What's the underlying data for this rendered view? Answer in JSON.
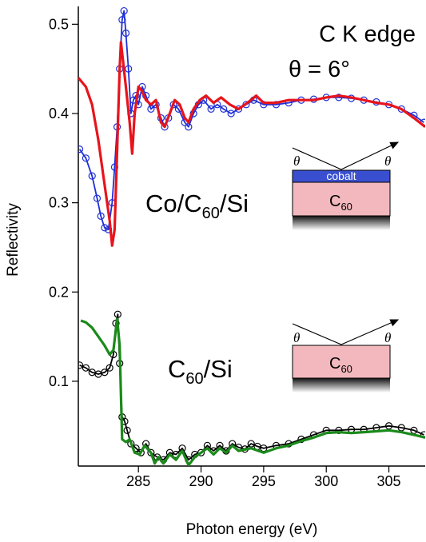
{
  "chart_data": {
    "type": "line",
    "xlabel": "Photon energy (eV)",
    "ylabel": "Reflectivity",
    "xlim": [
      280.2,
      307.9
    ],
    "ylim": [
      0.005,
      0.52
    ],
    "xticks": [
      285,
      290,
      295,
      300,
      305
    ],
    "yticks": [
      0.1,
      0.2,
      0.3,
      0.4,
      0.5
    ],
    "annotations": [
      "C K edge",
      "θ = 6°"
    ],
    "sample_labels": [
      [
        "Co/C",
        "60",
        "/Si"
      ],
      [
        "C",
        "60",
        "/Si"
      ]
    ],
    "inset_labels": {
      "top_layer": "cobalt",
      "substrate": [
        "C",
        "60"
      ],
      "angle": "θ"
    },
    "series": [
      {
        "color": "#1f2fd6",
        "marker": "open-circle",
        "x": [
          280.3,
          280.8,
          281.3,
          281.7,
          282.0,
          282.3,
          282.6,
          282.9,
          283.1,
          283.3,
          283.5,
          283.7,
          283.85,
          284.0,
          284.2,
          284.4,
          284.6,
          284.8,
          285.0,
          285.3,
          285.6,
          286.0,
          286.4,
          286.8,
          287.1,
          287.4,
          287.8,
          288.2,
          288.7,
          289.0,
          289.4,
          289.8,
          290.2,
          290.8,
          291.3,
          291.8,
          292.4,
          293.0,
          293.6,
          294.2,
          295,
          296,
          297,
          298,
          299,
          300,
          301,
          302,
          303,
          304,
          305,
          306,
          307,
          307.8
        ],
        "values": [
          0.36,
          0.35,
          0.33,
          0.305,
          0.285,
          0.272,
          0.27,
          0.3,
          0.34,
          0.385,
          0.45,
          0.505,
          0.515,
          0.49,
          0.45,
          0.4,
          0.415,
          0.42,
          0.41,
          0.43,
          0.42,
          0.405,
          0.41,
          0.395,
          0.385,
          0.395,
          0.41,
          0.405,
          0.39,
          0.385,
          0.4,
          0.41,
          0.415,
          0.405,
          0.41,
          0.405,
          0.4,
          0.405,
          0.41,
          0.415,
          0.41,
          0.41,
          0.412,
          0.415,
          0.416,
          0.418,
          0.418,
          0.417,
          0.415,
          0.413,
          0.41,
          0.405,
          0.398,
          0.39
        ]
      },
      {
        "color": "#e8141b",
        "marker": "none",
        "x": [
          280.2,
          280.8,
          281.3,
          281.8,
          282.3,
          282.7,
          282.9,
          283.1,
          283.3,
          283.5,
          283.6,
          283.8,
          284.0,
          284.3,
          284.5,
          284.7,
          285.0,
          285.3,
          285.6,
          286.0,
          286.4,
          286.8,
          287.1,
          287.5,
          287.9,
          288.3,
          288.7,
          289.0,
          289.4,
          289.9,
          290.4,
          291,
          291.6,
          292.3,
          293,
          293.7,
          294.4,
          295,
          296,
          297,
          298,
          299,
          300,
          301,
          302,
          303,
          304,
          305,
          306,
          307,
          307.9
        ],
        "values": [
          0.44,
          0.43,
          0.41,
          0.37,
          0.32,
          0.28,
          0.252,
          0.27,
          0.36,
          0.45,
          0.48,
          0.455,
          0.43,
          0.39,
          0.355,
          0.4,
          0.43,
          0.425,
          0.415,
          0.41,
          0.415,
          0.39,
          0.385,
          0.4,
          0.415,
          0.41,
          0.395,
          0.39,
          0.405,
          0.415,
          0.42,
          0.412,
          0.418,
          0.41,
          0.405,
          0.412,
          0.42,
          0.412,
          0.412,
          0.415,
          0.415,
          0.415,
          0.418,
          0.42,
          0.418,
          0.415,
          0.412,
          0.41,
          0.405,
          0.395,
          0.385
        ]
      },
      {
        "color": "#000000",
        "marker": "open-circle",
        "x": [
          280.3,
          280.8,
          281.3,
          281.8,
          282.3,
          282.7,
          283.0,
          283.2,
          283.35,
          283.5,
          283.7,
          283.9,
          284.1,
          284.4,
          284.8,
          285.2,
          285.6,
          286.0,
          286.5,
          287.0,
          287.5,
          288.0,
          288.5,
          289.0,
          289.5,
          290.0,
          290.5,
          291,
          291.5,
          292,
          292.5,
          293,
          293.5,
          294,
          294.5,
          295,
          296,
          297,
          298,
          299,
          300,
          301,
          302,
          303,
          304,
          305,
          306,
          307,
          307.8
        ],
        "values": [
          0.118,
          0.115,
          0.11,
          0.108,
          0.11,
          0.115,
          0.13,
          0.165,
          0.175,
          0.12,
          0.06,
          0.055,
          0.045,
          0.03,
          0.025,
          0.02,
          0.03,
          0.02,
          0.015,
          0.012,
          0.02,
          0.018,
          0.025,
          0.012,
          0.018,
          0.02,
          0.028,
          0.022,
          0.028,
          0.022,
          0.03,
          0.026,
          0.024,
          0.03,
          0.027,
          0.025,
          0.028,
          0.03,
          0.035,
          0.04,
          0.045,
          0.045,
          0.046,
          0.046,
          0.048,
          0.05,
          0.048,
          0.045,
          0.04
        ]
      },
      {
        "color": "#1a8a1a",
        "marker": "none",
        "x": [
          280.4,
          280.8,
          281.3,
          281.8,
          282.3,
          282.7,
          283.0,
          283.3,
          283.5,
          283.7,
          284.0,
          284.3,
          284.7,
          285.1,
          285.5,
          286,
          286.3,
          286.6,
          287,
          287.5,
          288,
          288.5,
          289,
          289.5,
          290,
          290.5,
          291,
          291.5,
          292,
          292.5,
          293,
          294,
          295,
          296,
          297,
          298,
          299,
          300,
          301,
          302,
          303,
          304,
          305,
          306,
          307,
          307.9
        ],
        "values": [
          0.168,
          0.166,
          0.16,
          0.15,
          0.14,
          0.13,
          0.135,
          0.17,
          0.14,
          0.035,
          0.032,
          0.035,
          0.02,
          0.018,
          0.028,
          0.02,
          0.008,
          0.015,
          0.008,
          0.018,
          0.012,
          0.022,
          0.006,
          0.015,
          0.02,
          0.025,
          0.018,
          0.025,
          0.02,
          0.028,
          0.022,
          0.025,
          0.02,
          0.025,
          0.028,
          0.033,
          0.037,
          0.042,
          0.043,
          0.042,
          0.043,
          0.044,
          0.045,
          0.043,
          0.04,
          0.037
        ]
      }
    ]
  }
}
